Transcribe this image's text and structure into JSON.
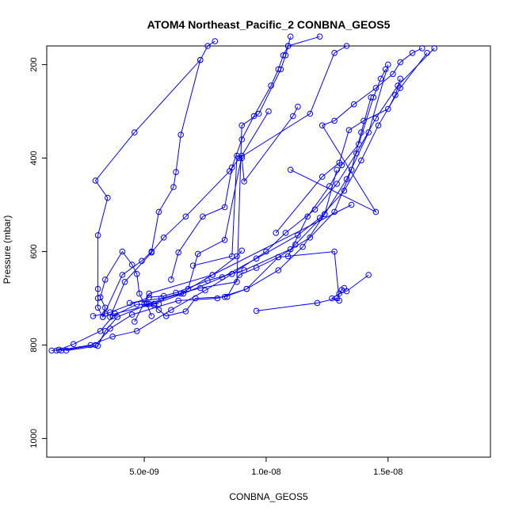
{
  "chart_data": {
    "type": "line",
    "title": "ATOM4 Northeast_Pacific_2 CONBNA_GEOS5",
    "xlabel": "CONBNA_GEOS5",
    "ylabel": "Pressure (mbar)",
    "xlim": [
      1e-09,
      1.92e-08
    ],
    "ylim": [
      1040,
      160
    ],
    "y_inverted": true,
    "grid": false,
    "legend": "none",
    "color": "#0000ff",
    "x_ticks": [
      5e-09,
      1e-08,
      1.5e-08
    ],
    "x_tick_labels": [
      "5.0e-09",
      "1.0e-08",
      "1.5e-08"
    ],
    "y_ticks": [
      200,
      400,
      600,
      800,
      1000
    ],
    "y_tick_labels": [
      "200",
      "400",
      "600",
      "800",
      "1000"
    ],
    "series": [
      {
        "x": [
          1.2e-09,
          1.5e-09,
          2.1e-09,
          3.2e-09,
          3.8e-09,
          5.4e-09,
          6.6e-09,
          8.2e-09,
          9.6e-09,
          1.13e-08,
          1.22e-08,
          1.32e-08,
          1.39e-08,
          1.46e-08,
          1.55e-08,
          1.66e-08
        ],
        "y": [
          812,
          810,
          798,
          770,
          733,
          712,
          690,
          655,
          615,
          565,
          528,
          470,
          405,
          330,
          250,
          175
        ]
      },
      {
        "x": [
          1.4e-09,
          2.8e-09,
          3.7e-09,
          4.7e-09,
          6.1e-09,
          7.5e-09,
          8.6e-09,
          1e-08,
          1.08e-08,
          1.2e-08,
          1.29e-08,
          1.37e-08,
          1.45e-08,
          1.54e-08,
          1.69e-08
        ],
        "y": [
          812,
          800,
          782,
          770,
          725,
          683,
          648,
          600,
          560,
          510,
          455,
          390,
          315,
          245,
          165
        ]
      },
      {
        "x": [
          1.6e-09,
          3e-09,
          3.6e-09,
          4.5e-09,
          6.4e-09,
          8e-09,
          9.2e-09,
          1.05e-08,
          1.15e-08,
          1.24e-08,
          1.33e-08,
          1.42e-08,
          1.5e-08
        ],
        "y": [
          812,
          800,
          765,
          735,
          705,
          700,
          680,
          640,
          590,
          520,
          445,
          345,
          200
        ]
      },
      {
        "x": [
          1.8e-09,
          3.1e-09,
          3.4e-09,
          3.9e-09,
          5.2e-09,
          5.6e-09,
          5e-09,
          4.8e-09,
          4.7e-09,
          4.5e-09,
          4.1e-09,
          3.4e-09,
          3.2e-09,
          3.4e-09,
          3.3e-09,
          3.1e-09,
          3.1e-09,
          3.1e-09,
          3.1e-09,
          3.5e-09,
          3e-09,
          4.6e-09,
          7.3e-09
        ],
        "y": [
          812,
          802,
          770,
          740,
          712,
          712,
          712,
          690,
          648,
          628,
          600,
          660,
          698,
          720,
          740,
          720,
          700,
          680,
          565,
          485,
          448,
          345,
          190
        ]
      },
      {
        "x": [
          2.9e-09,
          3.4e-09,
          3.6e-09,
          5.2e-09,
          5.8e-09,
          6.3e-09,
          7.6e-09,
          9.1e-09,
          1.1e-08,
          1.12e-08,
          1.24e-08,
          1.29e-08
        ],
        "y": [
          738,
          733,
          730,
          698,
          695,
          688,
          662,
          640,
          595,
          585,
          520,
          425
        ]
      },
      {
        "x": [
          3.7e-09,
          4.7e-09,
          5.4e-09,
          5.6e-09,
          5.9e-09,
          6.7e-09,
          7.1e-09,
          8.3e-09,
          9.2e-09,
          1.05e-08,
          1.18e-08,
          1.28e-08,
          1.35e-08,
          1.39e-08,
          1.43e-08
        ],
        "y": [
          738,
          713,
          715,
          725,
          738,
          728,
          700,
          697,
          680,
          612,
          570,
          515,
          425,
          345,
          270
        ]
      },
      {
        "x": [
          3.6e-09,
          4.2e-09,
          5.3e-09,
          5.8e-09,
          6.7e-09,
          8.5e-09,
          8.9e-09,
          1.18e-08,
          1.28e-08,
          1.33e-08
        ],
        "y": [
          740,
          665,
          602,
          570,
          525,
          428,
          400,
          305,
          175,
          160
        ]
      },
      {
        "x": [
          3.3e-09,
          4.1e-09,
          4.9e-09,
          5.3e-09,
          5.6e-09,
          6.2e-09,
          6.3e-09,
          6.5e-09,
          7.3e-09,
          7.6e-09,
          7.9e-09
        ],
        "y": [
          740,
          650,
          620,
          600,
          515,
          462,
          430,
          350,
          190,
          160,
          150
        ]
      },
      {
        "x": [
          5.3e-09,
          5.1e-09,
          6.5e-09,
          7.8e-09,
          1.35e-08
        ],
        "y": [
          738,
          712,
          690,
          650,
          500
        ]
      },
      {
        "x": [
          4.6e-09,
          5.2e-09,
          7.8e-09,
          8.8e-09,
          9e-09
        ],
        "y": [
          750,
          690,
          650,
          610,
          598
        ]
      },
      {
        "x": [
          4.4e-09,
          5.7e-09,
          7.3e-09,
          8.8e-09,
          9e-09,
          9.7e-09,
          1.06e-08,
          1.08e-08,
          1.09e-08,
          1.22e-08
        ],
        "y": [
          710,
          700,
          678,
          665,
          330,
          305,
          210,
          180,
          160,
          140
        ]
      },
      {
        "x": [
          6.1e-09,
          6.4e-09,
          7.4e-09,
          8.3e-09,
          8.6e-09,
          9e-09,
          9.5e-09,
          1.02e-08,
          1.05e-08,
          1.07e-08,
          1.09e-08,
          1.1e-08
        ],
        "y": [
          660,
          602,
          525,
          505,
          420,
          360,
          310,
          245,
          210,
          180,
          160,
          140
        ]
      },
      {
        "x": [
          6.8e-09,
          7.2e-09,
          8.3e-09,
          9e-09,
          1.01e-08
        ],
        "y": [
          680,
          605,
          575,
          395,
          300
        ]
      },
      {
        "x": [
          7e-09,
          8.6e-09,
          8.8e-09,
          9e-09,
          9.1e-09,
          1.11e-08,
          1.13e-08
        ],
        "y": [
          630,
          610,
          395,
          400,
          450,
          310,
          290
        ]
      },
      {
        "x": [
          8.4e-09,
          8.9e-09,
          9.6e-09,
          1.05e-08,
          1.28e-08,
          1.3e-08,
          1.27e-08,
          1.3e-08,
          1.33e-08,
          1.42e-08
        ],
        "y": [
          697,
          650,
          635,
          612,
          600,
          705,
          700,
          690,
          685,
          650
        ]
      },
      {
        "x": [
          9.6e-09,
          1.21e-08,
          1.29e-08,
          1.31e-08,
          1.32e-08
        ],
        "y": [
          727,
          710,
          700,
          682,
          678
        ]
      },
      {
        "x": [
          1.1e-08,
          1.45e-08,
          1.23e-08,
          1.28e-08,
          1.36e-08,
          1.45e-08,
          1.52e-08,
          1.55e-08,
          1.6e-08,
          1.64e-08
        ],
        "y": [
          425,
          515,
          330,
          320,
          285,
          250,
          220,
          195,
          175,
          165
        ]
      },
      {
        "x": [
          1.04e-08,
          1.23e-08,
          1.3e-08,
          1.34e-08,
          1.4e-08,
          1.5e-08,
          1.53e-08,
          1.55e-08
        ],
        "y": [
          560,
          440,
          410,
          340,
          320,
          295,
          265,
          230
        ]
      },
      {
        "x": [
          1.09e-08,
          1.17e-08,
          1.26e-08,
          1.31e-08,
          1.38e-08,
          1.44e-08,
          1.47e-08,
          1.49e-08
        ],
        "y": [
          610,
          525,
          460,
          415,
          370,
          270,
          230,
          210
        ]
      }
    ]
  }
}
